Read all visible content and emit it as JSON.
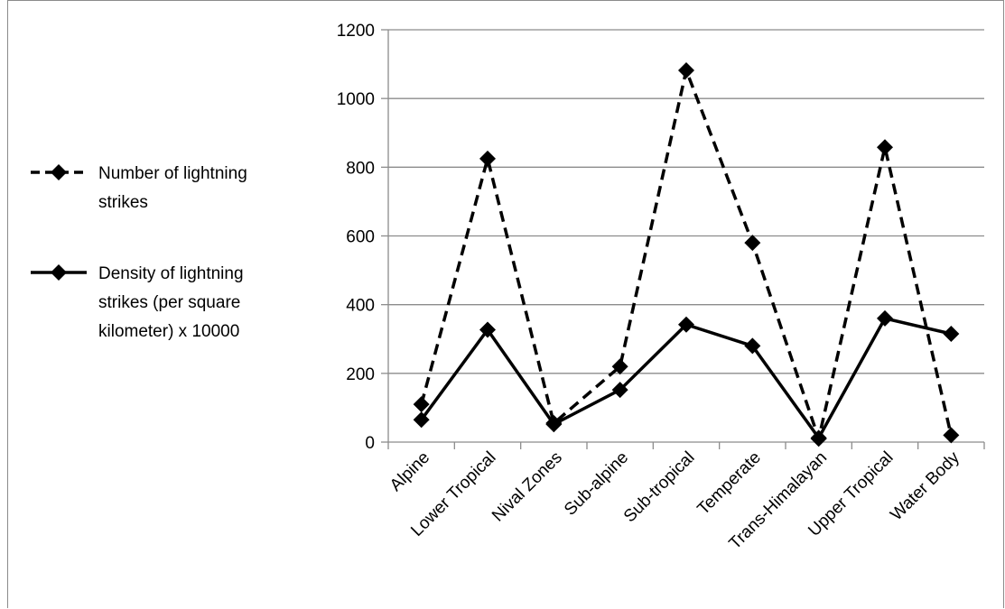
{
  "chart_data": {
    "type": "line",
    "categories": [
      "Alpine",
      "Lower Tropical",
      "Nival Zones",
      "Sub-alpine",
      "Sub-tropical",
      "Temperate",
      "Trans-Himalayan",
      "Upper Tropical",
      "Water Body"
    ],
    "series": [
      {
        "name": "Number of lightning strikes",
        "values": [
          110,
          825,
          55,
          220,
          1082,
          580,
          10,
          858,
          20
        ],
        "line_style": "dashed",
        "marker": "diamond",
        "color": "#000000"
      },
      {
        "name": "Density of lightning strikes (per square kilometer) x 10000",
        "values": [
          65,
          327,
          52,
          152,
          342,
          280,
          12,
          360,
          315
        ],
        "line_style": "solid",
        "marker": "diamond",
        "color": "#000000"
      }
    ],
    "ylim": [
      0,
      1200
    ],
    "yticks": [
      "0",
      "200",
      "400",
      "600",
      "800",
      "1000",
      "1200"
    ],
    "grid": true,
    "legend_position": "left",
    "legend": {
      "dashed_lines": [
        "Number of lightning",
        "strikes"
      ],
      "solid_lines": [
        "Density of lightning",
        "strikes (per square",
        "kilometer) x 10000"
      ]
    }
  }
}
